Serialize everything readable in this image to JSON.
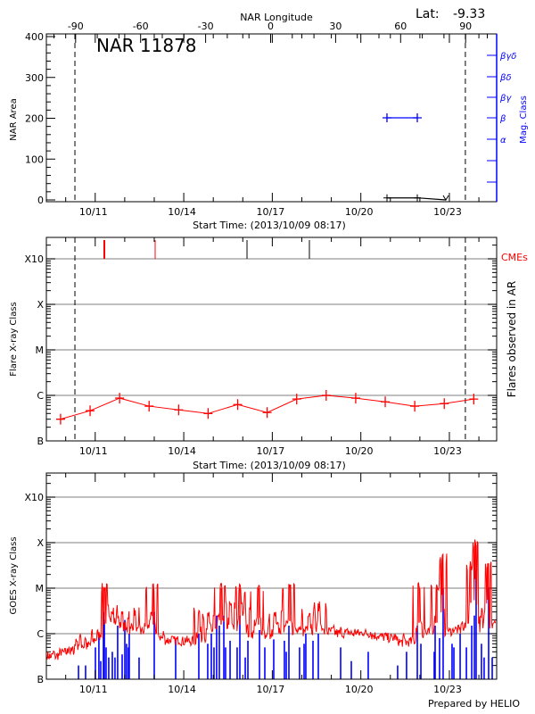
{
  "credit": "Prepared by HELIO",
  "chart_data": [
    {
      "type": "line",
      "title": "NAR 11878",
      "lat_label": "Lat:",
      "lat_value": "-9.33",
      "xlabel": "Start Time: (2013/10/09 08:17)",
      "ylabel": "NAR Area",
      "top_xlabel": "NAR Longitude",
      "right_ylabel": "Mag. Class",
      "ylim": [
        0,
        400
      ],
      "yticks": [
        "0",
        "100",
        "200",
        "300",
        "400"
      ],
      "xticks": [
        "10/11",
        "10/14",
        "10/17",
        "10/20",
        "10/23"
      ],
      "top_xticks": [
        "-90",
        "-60",
        "-30",
        "0",
        "30",
        "60",
        "90"
      ],
      "mag_class_ticks": [
        "",
        "",
        "α",
        "β",
        "βγ",
        "βδ",
        "βγδ"
      ],
      "limb_crossings": [
        "10/10 07:30",
        "10/23 13:00"
      ],
      "area_series": {
        "x": [
          "10/20 21:15",
          "10/21 21:55",
          "10/22 21:07"
        ],
        "y": [
          5,
          5,
          0
        ],
        "color": "#000000"
      },
      "mag_class_series": {
        "x": [
          "10/20 21:15",
          "10/21 21:55"
        ],
        "class": [
          "β",
          "β"
        ],
        "color": "#0000ff"
      },
      "grid": false
    },
    {
      "type": "line",
      "xlabel": "Start Time: (2013/10/09 08:17)",
      "ylabel": "Flare X-ray Class",
      "right_ylabel": "Flares observed in AR",
      "cme_label": "CMEs",
      "yticks": [
        "B",
        "C",
        "M",
        "X",
        "X10"
      ],
      "xticks": [
        "10/11",
        "10/14",
        "10/17",
        "10/20",
        "10/23"
      ],
      "limb_crossings": [
        "10/10 07:30",
        "10/23 13:00"
      ],
      "grid": true,
      "flares": {
        "x": [
          "10/09 19:50",
          "10/10 19:50",
          "10/11 19:50",
          "10/12 19:50",
          "10/13 19:50",
          "10/14 19:50",
          "10/15 19:50",
          "10/16 19:50",
          "10/17 19:50",
          "10/18 19:50",
          "10/19 19:50",
          "10/20 19:50",
          "10/21 19:50",
          "10/22 19:50",
          "10/23 19:50"
        ],
        "class": [
          "B3.0",
          "B4.6",
          "B8.7",
          "B5.8",
          "B4.8",
          "B4.0",
          "B6.3",
          "B4.2",
          "B8.3",
          "C1.0",
          "B8.7",
          "B7.2",
          "B5.8",
          "B6.6",
          "B8.3"
        ],
        "color": "#ff0000"
      },
      "cmes": {
        "x": [
          "10/11 07:25",
          "10/13 00:45",
          "10/16 03:26",
          "10/18 06:10"
        ],
        "color": [
          "#ff0000",
          "#ff0000",
          "#000000",
          "#000000"
        ]
      }
    },
    {
      "type": "line",
      "ylabel": "GOES X-ray Class",
      "yticks": [
        "B",
        "C",
        "M",
        "X",
        "X10"
      ],
      "xticks": [
        "10/11",
        "10/14",
        "10/17",
        "10/20",
        "10/23"
      ],
      "grid": true,
      "goes_long": {
        "color": "#ff0000",
        "points": [
          [
            "10/09 08:17",
            "B3.5"
          ],
          [
            "10/09 14:00",
            "B3.2"
          ],
          [
            "10/09 20:00",
            "B3.8"
          ],
          [
            "10/10 02:00",
            "B4.0"
          ],
          [
            "10/10 08:00",
            "B5.5"
          ],
          [
            "10/10 12:00",
            "B8.0"
          ],
          [
            "10/10 16:00",
            "B5.2"
          ],
          [
            "10/10 21:00",
            "B7.0"
          ],
          [
            "10/11 02:00",
            "C1.0"
          ],
          [
            "10/11 05:00",
            "B9.0"
          ],
          [
            "10/11 07:25",
            "M1.0"
          ],
          [
            "10/11 10:00",
            "C2.0"
          ],
          [
            "10/11 14:00",
            "C3.5"
          ],
          [
            "10/11 18:00",
            "C1.6"
          ],
          [
            "10/11 22:00",
            "C2.5"
          ],
          [
            "10/12 03:00",
            "C1.2"
          ],
          [
            "10/12 08:00",
            "C3.0"
          ],
          [
            "10/12 12:00",
            "C1.1"
          ],
          [
            "10/12 17:00",
            "C1.4"
          ],
          [
            "10/12 23:17",
            "M1.0"
          ],
          [
            "10/13 03:00",
            "C1.0"
          ],
          [
            "10/13 08:00",
            "B8.0"
          ],
          [
            "10/13 14:00",
            "B7.0"
          ],
          [
            "10/13 20:00",
            "B7.5"
          ],
          [
            "10/14 02:00",
            "B6.8"
          ],
          [
            "10/14 08:00",
            "B7.0"
          ],
          [
            "10/14 12:15",
            "C3.0"
          ],
          [
            "10/14 16:00",
            "B8.0"
          ],
          [
            "10/14 20:00",
            "C2.5"
          ],
          [
            "10/15 00:35",
            "C1.2"
          ],
          [
            "10/15 06:23",
            "M1.0"
          ],
          [
            "10/15 10:00",
            "C1.5"
          ],
          [
            "10/15 14:00",
            "C4.0"
          ],
          [
            "10/15 18:00",
            "C1.2"
          ],
          [
            "10/15 21:37",
            "M1.0"
          ],
          [
            "10/16 02:00",
            "C3.0"
          ],
          [
            "10/16 06:00",
            "C1.0"
          ],
          [
            "10/16 12:50",
            "M1.0"
          ],
          [
            "10/16 17:00",
            "C1.2"
          ],
          [
            "10/16 21:00",
            "B8.0"
          ],
          [
            "10/17 02:00",
            "C2.5"
          ],
          [
            "10/17 08:00",
            "C1.2"
          ],
          [
            "10/17 14:14",
            "M1.2"
          ],
          [
            "10/17 18:00",
            "C1.2"
          ],
          [
            "10/18 00:00",
            "C1.1"
          ],
          [
            "10/18 06:00",
            "C3.0"
          ],
          [
            "10/18 10:00",
            "C1.2"
          ],
          [
            "10/18 14:00",
            "C4.0"
          ],
          [
            "10/18 20:00",
            "C1.1"
          ],
          [
            "10/19 02:00",
            "C1.2"
          ],
          [
            "10/19 08:00",
            "C1.0"
          ],
          [
            "10/19 14:00",
            "C1.1"
          ],
          [
            "10/19 20:00",
            "C1.0"
          ],
          [
            "10/20 02:00",
            "C1.1"
          ],
          [
            "10/20 08:00",
            "C1.0"
          ],
          [
            "10/20 14:00",
            "B9.0"
          ],
          [
            "10/20 20:00",
            "B8.5"
          ],
          [
            "10/21 04:00",
            "B8.0"
          ],
          [
            "10/21 11:00",
            "B6.5"
          ],
          [
            "10/21 18:00",
            "B7.0"
          ],
          [
            "10/21 23:21",
            "M1.1"
          ],
          [
            "10/22 04:00",
            "C1.0"
          ],
          [
            "10/22 09:00",
            "C1.2"
          ],
          [
            "10/22 13:52",
            "M1.1"
          ],
          [
            "10/22 16:00",
            "C1.0"
          ],
          [
            "10/22 18:13",
            "M4.5"
          ],
          [
            "10/22 22:00",
            "C1.1"
          ],
          [
            "10/23 04:00",
            "C1.3"
          ],
          [
            "10/23 10:00",
            "C1.2"
          ],
          [
            "10/23 14:00",
            "C2.0"
          ],
          [
            "10/23 17:25",
            "M3.0"
          ],
          [
            "10/23 19:00",
            "C2.0"
          ],
          [
            "10/23 21:03",
            "X1.0"
          ],
          [
            "10/23 23:30",
            "C2.0"
          ],
          [
            "10/24 02:00",
            "C1.2"
          ],
          [
            "10/24 05:00",
            "C3.0"
          ],
          [
            "10/24 07:12",
            "M3.5"
          ],
          [
            "10/24 10:00",
            "C1.5"
          ],
          [
            "10/24 14:00",
            "C2.0"
          ]
        ]
      },
      "goes_flares": {
        "color": "#0000ff",
        "points": [
          [
            "10/10 10:25",
            "B2.0"
          ],
          [
            "10/10 16:10",
            "B2.0"
          ],
          [
            "10/11 00:10",
            "B5.0"
          ],
          [
            "10/11 03:00",
            "C1.0"
          ],
          [
            "10/11 04:30",
            "B2.5"
          ],
          [
            "10/11 06:40",
            "C3.0"
          ],
          [
            "10/11 07:25",
            "C2.0"
          ],
          [
            "10/11 08:50",
            "B5.0"
          ],
          [
            "10/11 11:00",
            "B3.0"
          ],
          [
            "10/11 13:55",
            "B4.0"
          ],
          [
            "10/11 16:05",
            "B3.0"
          ],
          [
            "10/11 18:15",
            "C1.5"
          ],
          [
            "10/11 21:55",
            "B3.5"
          ],
          [
            "10/12 00:05",
            "C2.0"
          ],
          [
            "10/12 01:30",
            "B6.0"
          ],
          [
            "10/12 03:00",
            "B5.0"
          ],
          [
            "10/12 03:40",
            "C1.0"
          ],
          [
            "10/12 11:40",
            "B3.0"
          ],
          [
            "10/13 00:00",
            "C3.0"
          ],
          [
            "10/13 17:25",
            "B7.5"
          ],
          [
            "10/14 12:15",
            "C1.0"
          ],
          [
            "10/14 19:30",
            "B6.0"
          ],
          [
            "10/14 22:25",
            "C1.0"
          ],
          [
            "10/15 00:35",
            "B5.0"
          ],
          [
            "10/15 02:45",
            "C2.5"
          ],
          [
            "10/15 04:55",
            "C1.5"
          ],
          [
            "10/15 08:35",
            "C2.5"
          ],
          [
            "10/15 10:00",
            "B5.0"
          ],
          [
            "10/15 13:40",
            "B7.0"
          ],
          [
            "10/15 19:25",
            "B5.0"
          ],
          [
            "10/15 21:37",
            "C2.5"
          ],
          [
            "10/16 02:00",
            "B3.0"
          ],
          [
            "10/16 04:10",
            "B7.0"
          ],
          [
            "10/16 13:35",
            "C1.2"
          ],
          [
            "10/16 17:55",
            "B5.0"
          ],
          [
            "10/17 01:10",
            "B7.5"
          ],
          [
            "10/17 09:50",
            "B7.0"
          ],
          [
            "10/17 11:20",
            "B4.0"
          ],
          [
            "10/17 13:30",
            "C1.5"
          ],
          [
            "10/17 22:10",
            "B5.0"
          ],
          [
            "10/18 01:50",
            "B6.0"
          ],
          [
            "10/18 03:15",
            "C1.0"
          ],
          [
            "10/18 09:05",
            "B7.0"
          ],
          [
            "10/18 13:25",
            "C1.0"
          ],
          [
            "10/19 07:35",
            "B5.0"
          ],
          [
            "10/19 16:15",
            "B2.5"
          ],
          [
            "10/20 06:00",
            "B4.0"
          ],
          [
            "10/21 05:55",
            "B2.0"
          ],
          [
            "10/21 13:10",
            "B4.0"
          ],
          [
            "10/21 21:55",
            "C1.5"
          ],
          [
            "10/22 00:50",
            "B6.0"
          ],
          [
            "10/22 11:40",
            "B4.0"
          ],
          [
            "10/22 12:25",
            "C1.5"
          ],
          [
            "10/22 16:00",
            "B8.0"
          ],
          [
            "10/22 18:55",
            "M1.0"
          ],
          [
            "10/23 02:10",
            "B6.0"
          ],
          [
            "10/23 03:40",
            "B5.0"
          ],
          [
            "10/23 08:45",
            "C1.0"
          ],
          [
            "10/23 13:50",
            "B5.0"
          ],
          [
            "10/23 18:10",
            "C1.5"
          ],
          [
            "10/23 20:20",
            "C2.5"
          ],
          [
            "10/23 21:45",
            "M2.5"
          ],
          [
            "10/24 02:05",
            "B6.0"
          ],
          [
            "10/24 04:15",
            "B3.0"
          ],
          [
            "10/24 07:55",
            "M1.0"
          ],
          [
            "10/24 10:50",
            "B3.0"
          ]
        ]
      }
    }
  ]
}
